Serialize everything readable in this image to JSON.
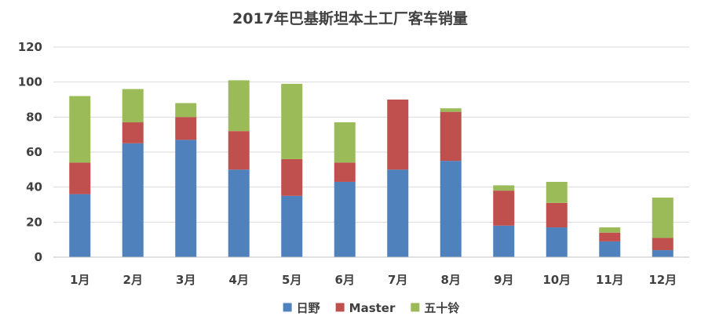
{
  "chart_data": {
    "type": "bar",
    "stacked": true,
    "title": "2017年巴基斯坦本土工厂客车销量",
    "xlabel": "",
    "ylabel": "",
    "ylim": [
      0,
      120
    ],
    "yticks": [
      0,
      20,
      40,
      60,
      80,
      100,
      120
    ],
    "grid": true,
    "legend_position": "bottom",
    "categories": [
      "1月",
      "2月",
      "3月",
      "4月",
      "5月",
      "6月",
      "7月",
      "8月",
      "9月",
      "10月",
      "11月",
      "12月"
    ],
    "series": [
      {
        "name": "日野",
        "color": "#4f81bd",
        "values": [
          36,
          65,
          67,
          50,
          35,
          43,
          50,
          55,
          18,
          17,
          9,
          4
        ]
      },
      {
        "name": "Master",
        "color": "#c0504d",
        "values": [
          18,
          12,
          13,
          22,
          21,
          11,
          40,
          28,
          20,
          14,
          5,
          7
        ]
      },
      {
        "name": "五十铃",
        "color": "#9bbb59",
        "values": [
          38,
          19,
          8,
          29,
          43,
          23,
          0,
          2,
          3,
          12,
          3,
          23
        ]
      }
    ]
  }
}
